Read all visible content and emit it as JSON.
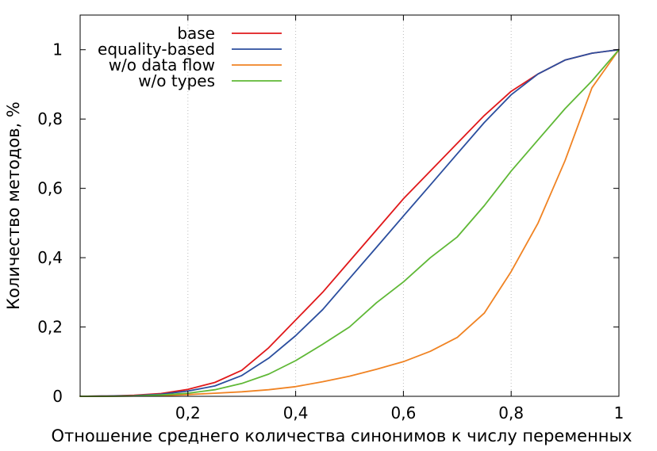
{
  "chart_data": {
    "type": "line",
    "title": "",
    "xlabel": "Отношение среднего количества синонимов к числу переменных",
    "ylabel": "Количество методов, %",
    "xlim": [
      0,
      1
    ],
    "ylim": [
      0,
      1.1
    ],
    "x_ticks": [
      0.2,
      0.4,
      0.6,
      0.8,
      1.0
    ],
    "x_tick_labels": [
      "0,2",
      "0,4",
      "0,6",
      "0,8",
      "1"
    ],
    "y_ticks": [
      0,
      0.2,
      0.4,
      0.6,
      0.8,
      1.0
    ],
    "y_tick_labels": [
      "0",
      "0,2",
      "0,4",
      "0,6",
      "0,8",
      "1"
    ],
    "grid": "vertical dotted at x ticks",
    "legend_position": "top-left",
    "x": [
      0,
      0.05,
      0.1,
      0.15,
      0.2,
      0.25,
      0.3,
      0.35,
      0.4,
      0.45,
      0.5,
      0.55,
      0.6,
      0.65,
      0.7,
      0.75,
      0.8,
      0.85,
      0.9,
      0.95,
      1.0
    ],
    "series": [
      {
        "name": "base",
        "color": "#e0191b",
        "values": [
          0,
          0.001,
          0.003,
          0.008,
          0.02,
          0.04,
          0.075,
          0.14,
          0.22,
          0.3,
          0.39,
          0.48,
          0.57,
          0.65,
          0.73,
          0.81,
          0.88,
          0.93,
          0.97,
          0.99,
          1.0
        ]
      },
      {
        "name": "equality-based",
        "color": "#2b4e9e",
        "values": [
          0,
          0.001,
          0.002,
          0.006,
          0.015,
          0.03,
          0.06,
          0.11,
          0.175,
          0.25,
          0.34,
          0.43,
          0.52,
          0.61,
          0.7,
          0.79,
          0.87,
          0.93,
          0.97,
          0.99,
          1.0
        ]
      },
      {
        "name": "w/o data flow",
        "color": "#f08323",
        "values": [
          0,
          0.0,
          0.001,
          0.002,
          0.005,
          0.009,
          0.013,
          0.019,
          0.028,
          0.042,
          0.058,
          0.078,
          0.1,
          0.13,
          0.17,
          0.24,
          0.36,
          0.5,
          0.68,
          0.89,
          1.0
        ]
      },
      {
        "name": "w/o types",
        "color": "#5fb836",
        "values": [
          0,
          0.0,
          0.001,
          0.004,
          0.009,
          0.019,
          0.037,
          0.064,
          0.103,
          0.15,
          0.2,
          0.27,
          0.33,
          0.4,
          0.46,
          0.55,
          0.65,
          0.74,
          0.83,
          0.91,
          1.0
        ]
      }
    ]
  }
}
